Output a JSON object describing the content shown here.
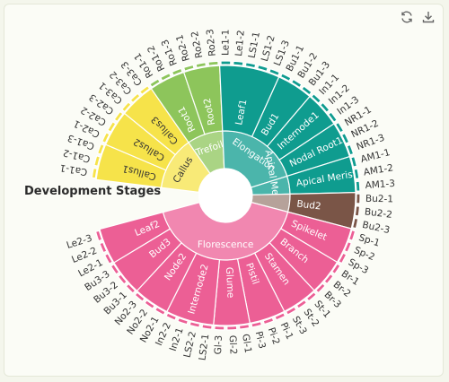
{
  "toolbar": {
    "refresh_icon": "refresh-icon",
    "download_icon": "download-icon"
  },
  "chart_data": {
    "type": "sunburst",
    "title": "Development Stages",
    "colors": {
      "Callus": "#f6e34a",
      "Trefoil": "#8dc55b",
      "Elongation": "#0f9c8f",
      "Florescence": "#ec5f95",
      "Bud2": "#7a5547",
      "Apical Meristem": "#0f9c8f"
    },
    "stages": [
      {
        "name": "Callus",
        "color": "#f6e34a",
        "children": [
          {
            "name": "Callus1",
            "samples": [
              "Ca1-1",
              "Ca1-2",
              "Ca1-3"
            ]
          },
          {
            "name": "Callus2",
            "samples": [
              "Ca2-1",
              "Ca2-2",
              "Ca2-3"
            ]
          },
          {
            "name": "Callus3",
            "samples": [
              "Ca3-1",
              "Ca3-2",
              "Ca3-3"
            ]
          }
        ]
      },
      {
        "name": "Trefoil",
        "color": "#8dc55b",
        "children": [
          {
            "name": "Root1",
            "samples": [
              "Ro1-1",
              "Ro1-2",
              "Ro1-3"
            ]
          },
          {
            "name": "Root2",
            "samples": [
              "Ro2-1",
              "Ro2-2",
              "Ro2-3"
            ]
          }
        ]
      },
      {
        "name": "Elongation",
        "color": "#0f9c8f",
        "children": [
          {
            "name": "Leaf1",
            "samples": [
              "Le1-1",
              "Le1-2",
              "LS1-1",
              "LS1-2",
              "LS1-3"
            ]
          },
          {
            "name": "Bud1",
            "samples": [
              "Bu1-1",
              "Bu1-2",
              "Bu1-3"
            ]
          },
          {
            "name": "Internode1",
            "samples": [
              "In1-1",
              "In1-2",
              "In1-3"
            ]
          },
          {
            "name": "Nodal Root1",
            "samples": [
              "NR1-1",
              "NR1-2",
              "NR1-3"
            ]
          }
        ]
      },
      {
        "name": "Apical Meristem",
        "color": "#0f9c8f",
        "children": [
          {
            "name": "Apical Meristem",
            "samples": [
              "AM1-1",
              "AM1-2",
              "AM1-3"
            ]
          }
        ]
      },
      {
        "name": "",
        "color": "#7a5547",
        "children": [
          {
            "name": "Bud2",
            "samples": [
              "Bu2-1",
              "Bu2-2",
              "Bu2-3"
            ]
          }
        ]
      },
      {
        "name": "Florescence",
        "color": "#ec5f95",
        "children": [
          {
            "name": "Spikelet",
            "samples": [
              "Sp-1",
              "Sp-2",
              "Sp-3"
            ]
          },
          {
            "name": "Branch",
            "samples": [
              "Br-1",
              "Br-2",
              "Br-3"
            ]
          },
          {
            "name": "Stamen",
            "samples": [
              "St-1",
              "St-2",
              "St-3"
            ]
          },
          {
            "name": "Pistil",
            "samples": [
              "Pi-1",
              "Pi-2",
              "Pi-3"
            ]
          },
          {
            "name": "Glume",
            "samples": [
              "Gl-1",
              "Gl-2",
              "Gl-3"
            ]
          },
          {
            "name": "Internode2",
            "samples": [
              "LS2-1",
              "LS2-2",
              "In2-1",
              "In2-2"
            ]
          },
          {
            "name": "Node2",
            "samples": [
              "No2-1",
              "No2-2",
              "No2-3"
            ]
          },
          {
            "name": "Bud3",
            "samples": [
              "Bu3-1",
              "Bu3-2",
              "Bu3-3"
            ]
          },
          {
            "name": "Leaf2",
            "samples": [
              "Le2-1",
              "Le2-2",
              "Le2-3"
            ]
          }
        ]
      }
    ]
  }
}
